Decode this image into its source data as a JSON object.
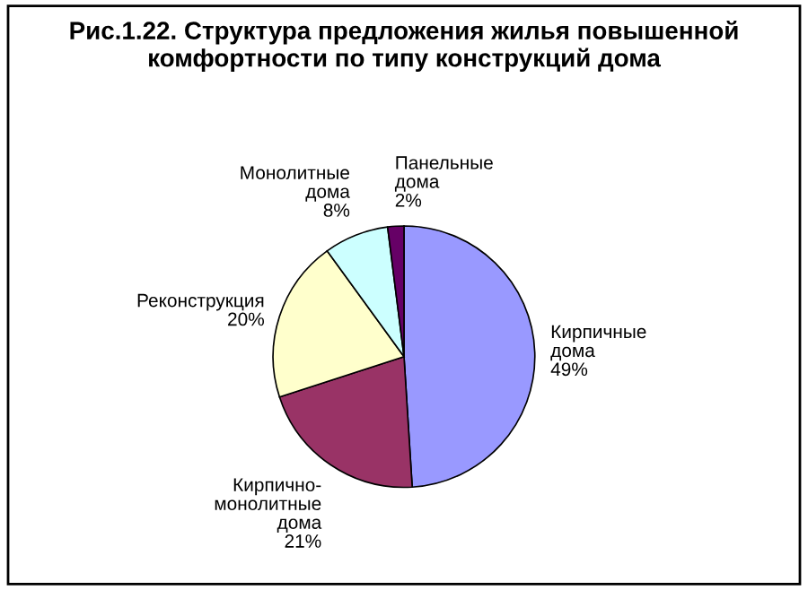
{
  "chart_data": {
    "type": "pie",
    "title": "Рис.1.22. Структура предложения жилья повышенной комфортности по типу конструкций дома",
    "categories": [
      "Кирпичные дома",
      "Кирпично-монолитные дома",
      "Реконструкция",
      "Монолитные дома",
      "Панельные дома"
    ],
    "values": [
      49,
      21,
      20,
      8,
      2
    ],
    "value_labels": [
      "49%",
      "21%",
      "20%",
      "8%",
      "2%"
    ],
    "colors": [
      "#9999ff",
      "#993366",
      "#ffffcc",
      "#ccffff",
      "#660066"
    ]
  }
}
